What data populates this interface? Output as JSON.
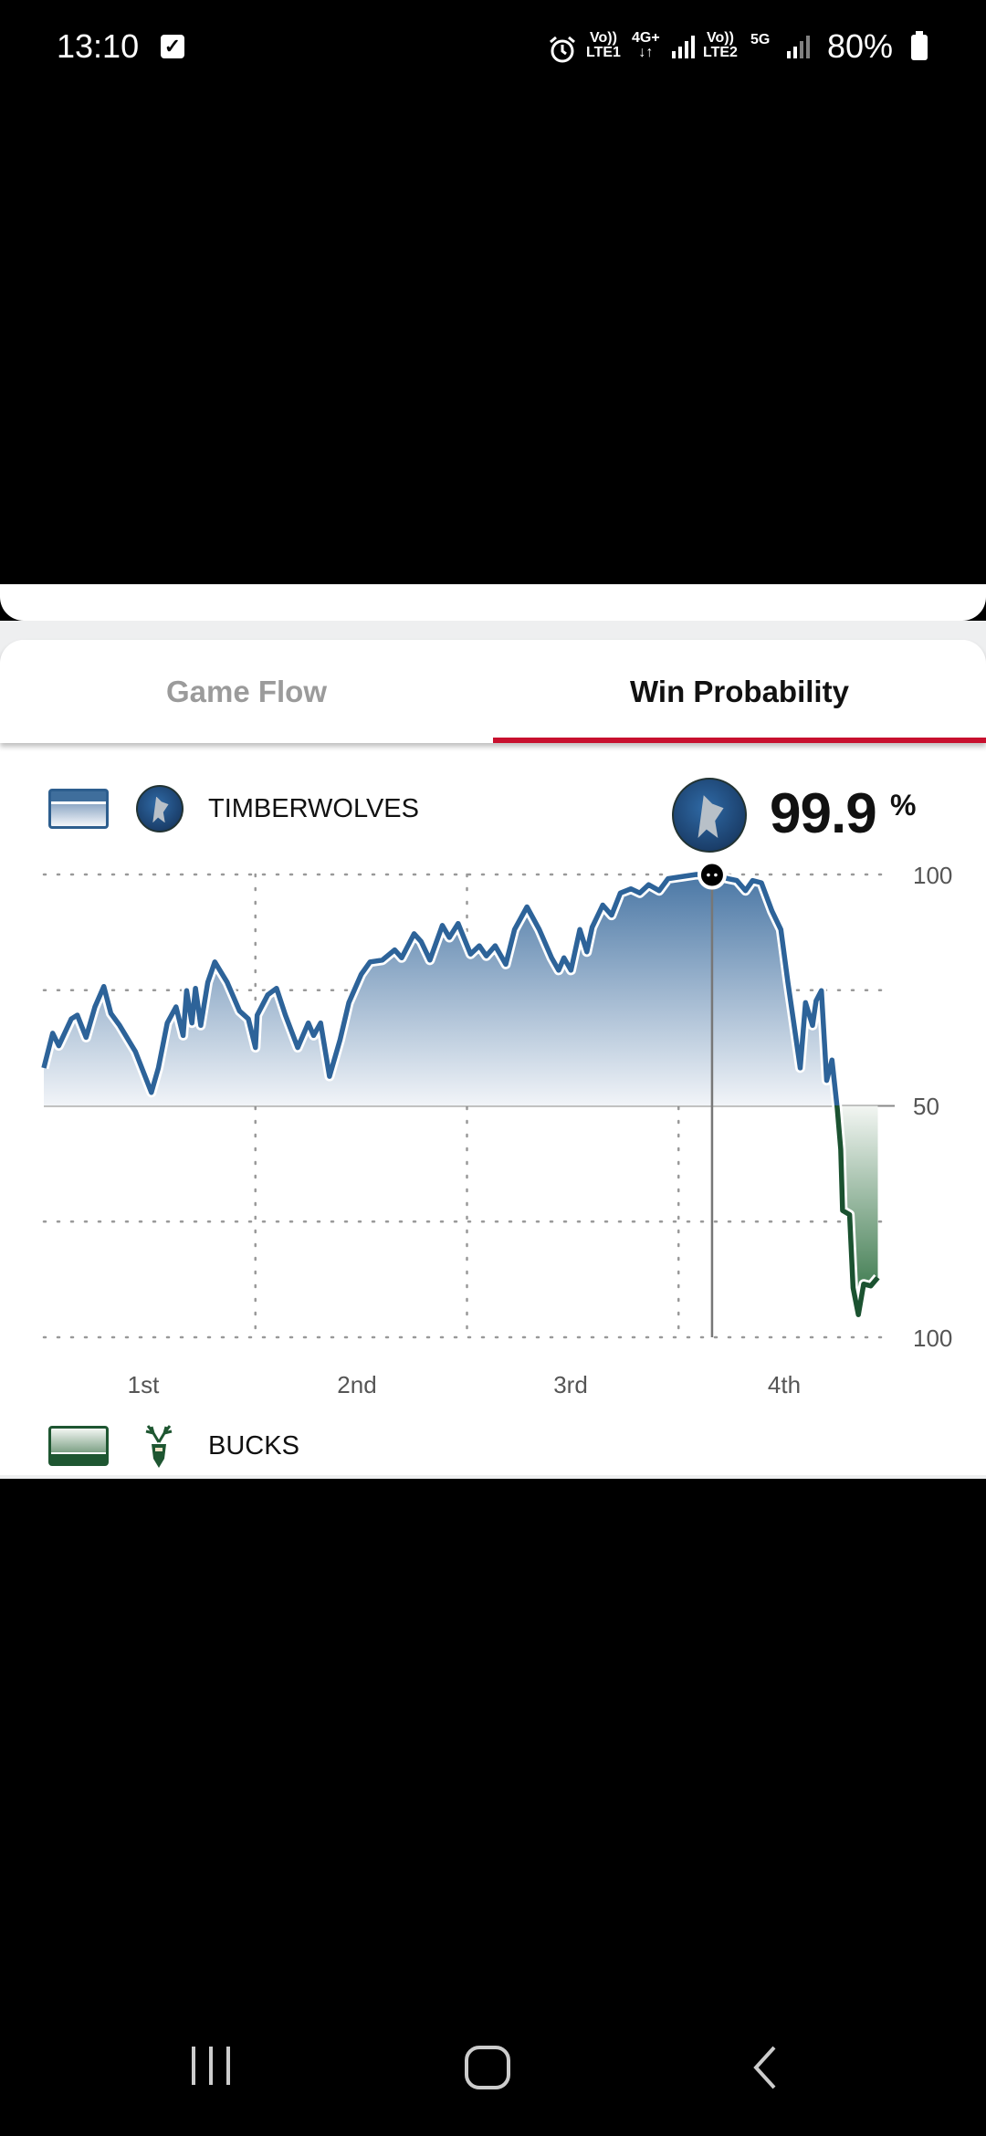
{
  "status_bar": {
    "time": "13:10",
    "notification_icon": "checkbox-icon",
    "sim1_label_top": "Vo))",
    "sim1_label_bottom": "LTE1",
    "net1": "4G+",
    "sim2_label_top": "Vo))",
    "sim2_label_bottom": "LTE2",
    "net2": "5G",
    "battery": "80%",
    "icons": [
      "alarm-icon",
      "signal-icon",
      "signal-icon",
      "battery-icon"
    ]
  },
  "tabs": [
    {
      "label": "Game Flow",
      "active": false
    },
    {
      "label": "Win Probability",
      "active": true
    }
  ],
  "accent_color": "#c8102e",
  "home_team": {
    "name": "TIMBERWOLVES",
    "color": "#2d6399",
    "win_probability": "99.9",
    "percent_sign": "%"
  },
  "away_team": {
    "name": "BUCKS",
    "color": "#1b5230"
  },
  "chart_data": {
    "type": "area",
    "xlabel": "",
    "ylabel": "",
    "x_unit": "game minutes",
    "xlim": [
      0,
      48
    ],
    "ylim": [
      0,
      100
    ],
    "y_tick_labels": [
      {
        "value": 100,
        "label": "100"
      },
      {
        "value": 50,
        "label": "50"
      },
      {
        "value": 0,
        "label": "100"
      }
    ],
    "x_tick_labels": [
      {
        "value": 6,
        "label": "1st"
      },
      {
        "value": 18,
        "label": "2nd"
      },
      {
        "value": 30,
        "label": "3rd"
      },
      {
        "value": 42,
        "label": "4th"
      }
    ],
    "gridlines_y": [
      100,
      75,
      25,
      0
    ],
    "gridlines_x": [
      12,
      24,
      36
    ],
    "baseline": 50,
    "grid": true,
    "series": [
      {
        "name": "TIMBERWOLVES",
        "x": [
          0,
          0.5,
          0.85,
          1.56,
          1.9,
          2.4,
          2.9,
          3.4,
          3.8,
          4.3,
          5.2,
          6.1,
          6.5,
          7.0,
          7.5,
          7.9,
          8.1,
          8.4,
          8.6,
          8.9,
          9.3,
          9.7,
          10.4,
          11.1,
          11.6,
          12.0,
          12.1,
          12.7,
          13.2,
          13.7,
          14.4,
          15.0,
          15.3,
          15.7,
          16.2,
          16.8,
          17.3,
          18.0,
          18.5,
          19.2,
          19.9,
          20.3,
          21.0,
          21.4,
          21.9,
          22.6,
          23.0,
          23.5,
          24.2,
          24.7,
          25.1,
          25.6,
          26.2,
          26.7,
          27.4,
          28.1,
          28.8,
          29.2,
          29.5,
          29.9,
          30.4,
          30.8,
          31.1,
          31.7,
          32.2,
          32.7,
          33.3,
          33.8,
          34.3,
          34.9,
          35.4,
          36.3,
          37.0,
          37.9,
          38.8,
          39.3,
          39.8,
          40.2,
          40.7,
          41.3,
          41.8,
          42.2,
          42.5,
          42.9,
          43.2,
          43.6,
          43.8,
          44.1,
          44.4,
          44.7,
          45.0,
          45.2,
          45.3,
          45.7,
          45.9,
          46.2,
          46.5,
          46.9,
          47.3
        ],
        "y": [
          58.2,
          65.7,
          63,
          68.8,
          69.6,
          64.8,
          71.4,
          75.8,
          70,
          67.4,
          61.7,
          52.9,
          58.2,
          67.9,
          71.4,
          65.2,
          74.9,
          67.9,
          75.4,
          67.4,
          76.7,
          81.1,
          76.7,
          70.5,
          68.8,
          62.6,
          69.6,
          74,
          75.4,
          69.6,
          62.6,
          67.9,
          65.2,
          67.9,
          56.4,
          64.3,
          72.3,
          78.4,
          81.1,
          81.5,
          83.7,
          82,
          87.2,
          85.5,
          81.5,
          89,
          86.4,
          89.4,
          82.8,
          84.6,
          82.4,
          84.6,
          80.6,
          88.1,
          93,
          88.1,
          82,
          79.3,
          82,
          79.3,
          88.1,
          83.3,
          88.6,
          93.4,
          91.2,
          96,
          96.9,
          96,
          97.8,
          96.5,
          99.1,
          99.6,
          100,
          99.9,
          99.1,
          98.7,
          96.5,
          98.7,
          98.2,
          92.1,
          88.1,
          76.7,
          68.8,
          58.2,
          72.3,
          67.4,
          72.7,
          74.9,
          55.5,
          59.9,
          49.4,
          40.6,
          27.4,
          26.5,
          10.7,
          4.9,
          11.5,
          11.1,
          12.9
        ]
      }
    ],
    "highlight": {
      "x": 37.9,
      "y": 99.9
    }
  },
  "nav_bar": {
    "icons": [
      "recent-apps-icon",
      "home-icon",
      "back-icon"
    ]
  }
}
